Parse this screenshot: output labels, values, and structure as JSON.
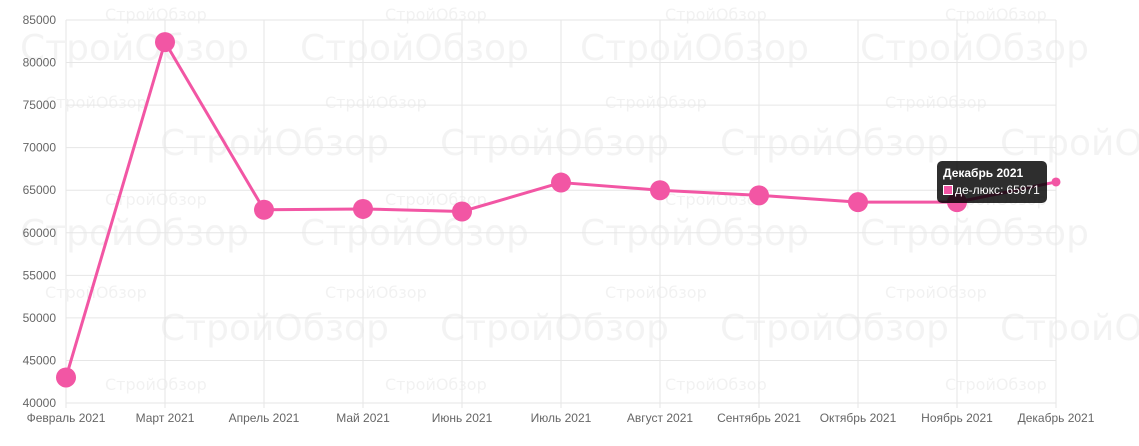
{
  "watermark": "СтройОбзор",
  "chart_data": {
    "type": "line",
    "x": [
      "Февраль 2021",
      "Март 2021",
      "Апрель 2021",
      "Май 2021",
      "Июнь 2021",
      "Июль 2021",
      "Август 2021",
      "Сентябрь 2021",
      "Октябрь 2021",
      "Ноябрь 2021",
      "Декабрь 2021"
    ],
    "series": [
      {
        "name": "де-люкс",
        "color": "#f256a4",
        "values": [
          43000,
          82400,
          62700,
          62800,
          62500,
          65900,
          65000,
          64400,
          63600,
          63600,
          65971
        ]
      }
    ],
    "ylim": [
      40000,
      85000
    ],
    "yticks": [
      40000,
      45000,
      50000,
      55000,
      60000,
      65000,
      70000,
      75000,
      80000,
      85000
    ],
    "grid": true,
    "tooltip": {
      "title": "Декабрь 2021",
      "series": "де-люкс",
      "value": "65971"
    }
  }
}
